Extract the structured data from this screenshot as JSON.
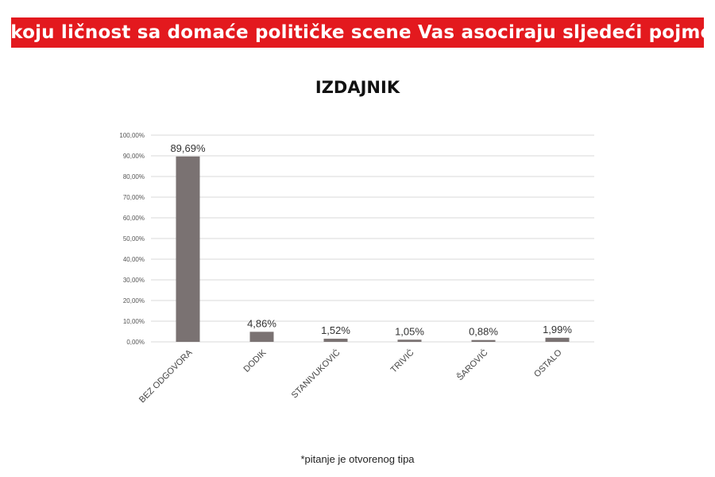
{
  "header": {
    "question": "Na koju ličnost sa domaće političke scene Vas asociraju sljedeći pojmovi:"
  },
  "footnote": "*pitanje je otvorenog tipa",
  "colors": {
    "banner": "#e3191e",
    "bar": "#7a7272",
    "grid": "#d9d9d9"
  },
  "chart_data": {
    "type": "bar",
    "title": "IZDAJNIK",
    "categories": [
      "BEZ ODGOVORA",
      "DODIK",
      "STANIVUKOVIĆ",
      "TRIVIĆ",
      "ŠAROVIĆ",
      "OSTALO"
    ],
    "values": [
      89.69,
      4.86,
      1.52,
      1.05,
      0.88,
      1.99
    ],
    "data_labels": [
      "89,69%",
      "4,86%",
      "1,52%",
      "1,05%",
      "0,88%",
      "1,99%"
    ],
    "y_ticks": [
      "0,00%",
      "10,00%",
      "20,00%",
      "30,00%",
      "40,00%",
      "50,00%",
      "60,00%",
      "70,00%",
      "80,00%",
      "90,00%",
      "100,00%"
    ],
    "ylim": [
      0,
      100
    ],
    "grid": true,
    "legend": "none"
  }
}
